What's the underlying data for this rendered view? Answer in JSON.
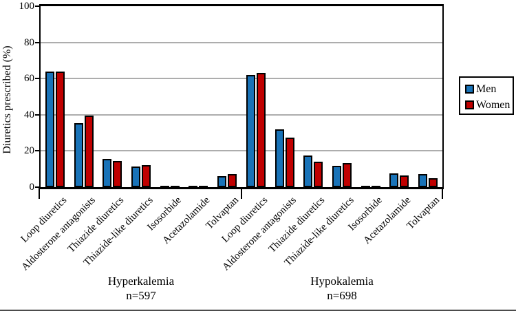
{
  "chart_data": {
    "type": "bar",
    "title": "",
    "ylabel": "Diuretics prescribed (%)",
    "ylim": [
      0,
      100
    ],
    "ytick_step": 20,
    "ytick_labels": [
      "0",
      "20",
      "40",
      "60",
      "80",
      "100"
    ],
    "grid": true,
    "legend_position": "right",
    "legend": [
      {
        "name": "Men",
        "color": "#1973B8"
      },
      {
        "name": "Women",
        "color": "#C00000"
      }
    ],
    "categories": [
      "Loop diuretics",
      "Aldosterone antagonists",
      "Thiazide diuretics",
      "Thiazide-like diuretics",
      "Isosorbide",
      "Acetazolamide",
      "Tolvaptan"
    ],
    "groups": [
      {
        "label": "Hyperkalemia",
        "sublabel": "n=597",
        "series": [
          {
            "name": "Men",
            "values": [
              63.0,
              34.5,
              15.0,
              10.5,
              0.4,
              0.7,
              5.3
            ]
          },
          {
            "name": "Women",
            "values": [
              63.3,
              38.6,
              13.5,
              11.3,
              0.6,
              0.5,
              6.6
            ]
          }
        ]
      },
      {
        "label": "Hypokalemia",
        "sublabel": "n=698",
        "series": [
          {
            "name": "Men",
            "values": [
              61.3,
              31.3,
              16.6,
              11.0,
              0.4,
              6.7,
              6.4
            ]
          },
          {
            "name": "Women",
            "values": [
              62.2,
              26.6,
              13.3,
              12.6,
              0.6,
              5.8,
              4.0
            ]
          }
        ]
      }
    ],
    "colors": {
      "men": "#1973B8",
      "women": "#C00000",
      "gridline": "#ADADAD",
      "axis": "#000000"
    }
  }
}
